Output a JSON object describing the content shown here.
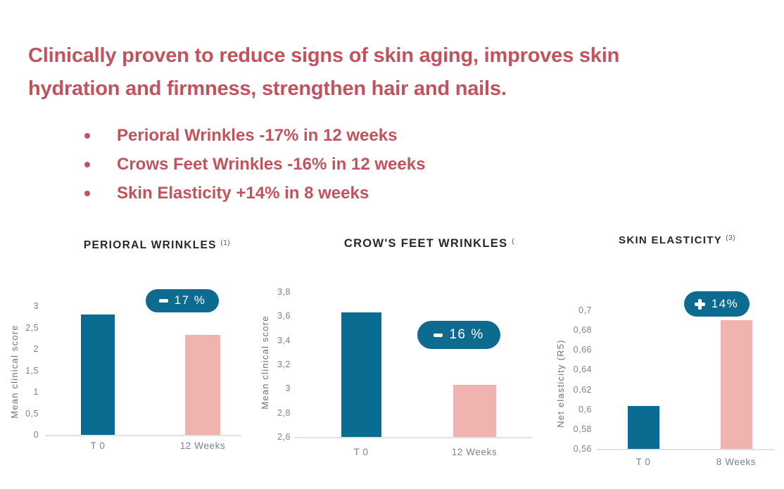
{
  "headline": {
    "line1": "Clinically proven to reduce signs of skin aging, improves skin",
    "line2": "hydration and firmness, strengthen hair and nails."
  },
  "bullets": [
    "Perioral Wrinkles -17% in 12 weeks",
    "Crows Feet Wrinkles -16% in 12 weeks",
    "Skin Elasticity +14% in 8 weeks"
  ],
  "colors": {
    "headline_red": "#c2535c",
    "bar_t0_teal": "#0b6c91",
    "bar_after_pink": "#efb3b0",
    "badge_teal": "#0e6b90",
    "title_text": "#23282e",
    "superscript_text": "#4d545b",
    "tick_text": "#7b828a",
    "axis_label_text": "#6a7480",
    "baseline_gray": "#e2e2e2"
  },
  "chart_data": [
    {
      "type": "bar",
      "title": "PERIORAL WRINKLES",
      "title_superscript": "(1)",
      "ylabel": "Mean clinical score",
      "categories": [
        "T 0",
        "12 Weeks"
      ],
      "values": [
        2.8,
        2.33
      ],
      "yticks": [
        "3",
        "2,5",
        "2",
        "1,5",
        "1",
        "0,5",
        "0"
      ],
      "ylim": [
        0,
        3
      ],
      "grid": "off",
      "badge": {
        "sign": "-",
        "value": "17 %"
      }
    },
    {
      "type": "bar",
      "title": "CROW'S FEET WRINKLES",
      "title_superscript": "(",
      "ylabel": "Mean clinical score",
      "categories": [
        "T 0",
        "12 Weeks"
      ],
      "values": [
        3.63,
        3.03
      ],
      "yticks": [
        "3,8",
        "3,6",
        "3,4",
        "3,2",
        "3",
        "2,8",
        "2,6"
      ],
      "ylim": [
        2.6,
        3.8
      ],
      "grid": "off",
      "badge": {
        "sign": "-",
        "value": "16 %"
      }
    },
    {
      "type": "bar",
      "title": "SKIN ELASTICITY",
      "title_superscript": "(3)",
      "ylabel": "Net elasticity (R5)",
      "categories": [
        "T 0",
        "8 Weeks"
      ],
      "values": [
        0.603,
        0.69
      ],
      "yticks": [
        "0,7",
        "0,68",
        "0,66",
        "0,64",
        "0,62",
        "0,6",
        "0,58",
        "0,56"
      ],
      "ylim": [
        0.56,
        0.7
      ],
      "grid": "off",
      "badge": {
        "sign": "+",
        "value": "14%"
      }
    }
  ]
}
